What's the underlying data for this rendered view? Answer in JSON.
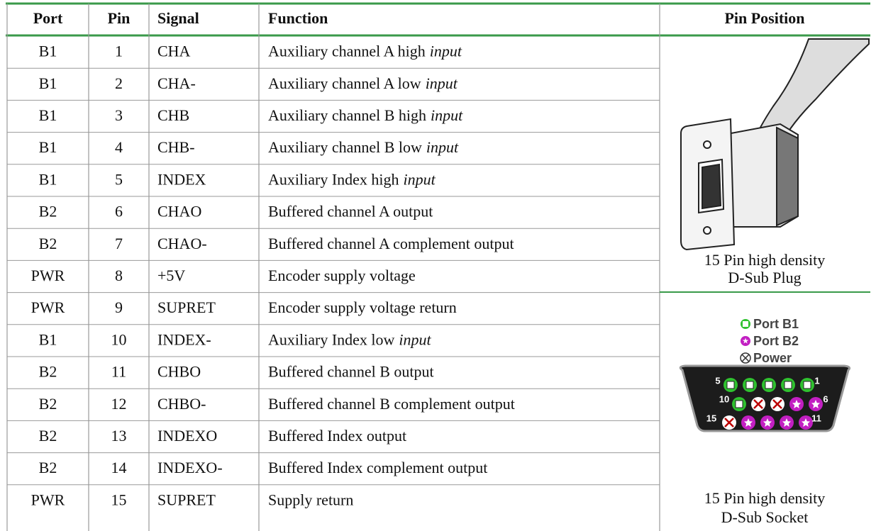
{
  "table": {
    "headers": [
      "Port",
      "Pin",
      "Signal",
      "Function",
      "Pin Position"
    ],
    "rows": [
      {
        "port": "B1",
        "pin": 1,
        "signal": "CHA",
        "function": "Auxiliary channel A high",
        "function_em": "input"
      },
      {
        "port": "B1",
        "pin": 2,
        "signal": "CHA-",
        "function": "Auxiliary channel A low",
        "function_em": "input"
      },
      {
        "port": "B1",
        "pin": 3,
        "signal": "CHB",
        "function": "Auxiliary channel B high",
        "function_em": "input"
      },
      {
        "port": "B1",
        "pin": 4,
        "signal": "CHB-",
        "function": "Auxiliary channel B low",
        "function_em": "input"
      },
      {
        "port": "B1",
        "pin": 5,
        "signal": "INDEX",
        "function": "Auxiliary Index high",
        "function_em": "input"
      },
      {
        "port": "B2",
        "pin": 6,
        "signal": "CHAO",
        "function": "Buffered channel A output"
      },
      {
        "port": "B2",
        "pin": 7,
        "signal": "CHAO-",
        "function": "Buffered channel A complement output"
      },
      {
        "port": "PWR",
        "pin": 8,
        "signal": "+5V",
        "function": "Encoder supply voltage"
      },
      {
        "port": "PWR",
        "pin": 9,
        "signal": "SUPRET",
        "function": "Encoder supply voltage return"
      },
      {
        "port": "B1",
        "pin": 10,
        "signal": "INDEX-",
        "function": "Auxiliary Index low",
        "function_em": "input"
      },
      {
        "port": "B2",
        "pin": 11,
        "signal": "CHBO",
        "function": "Buffered channel B output"
      },
      {
        "port": "B2",
        "pin": 12,
        "signal": "CHBO-",
        "function": "Buffered channel B complement output"
      },
      {
        "port": "B2",
        "pin": 13,
        "signal": "INDEXO",
        "function": "Buffered Index output"
      },
      {
        "port": "B2",
        "pin": 14,
        "signal": "INDEXO-",
        "function": "Buffered Index complement output"
      },
      {
        "port": "PWR",
        "pin": 15,
        "signal": "SUPRET",
        "function": "Supply return"
      }
    ]
  },
  "plug": {
    "caption": [
      "15 Pin high density",
      "D-Sub Plug"
    ]
  },
  "socket": {
    "legend": [
      "Port B1",
      "Port B2",
      "Power"
    ],
    "pin_labels": [
      5,
      1,
      10,
      6,
      15,
      11
    ],
    "caption": [
      "15 Pin high density",
      "D-Sub Socket"
    ]
  }
}
